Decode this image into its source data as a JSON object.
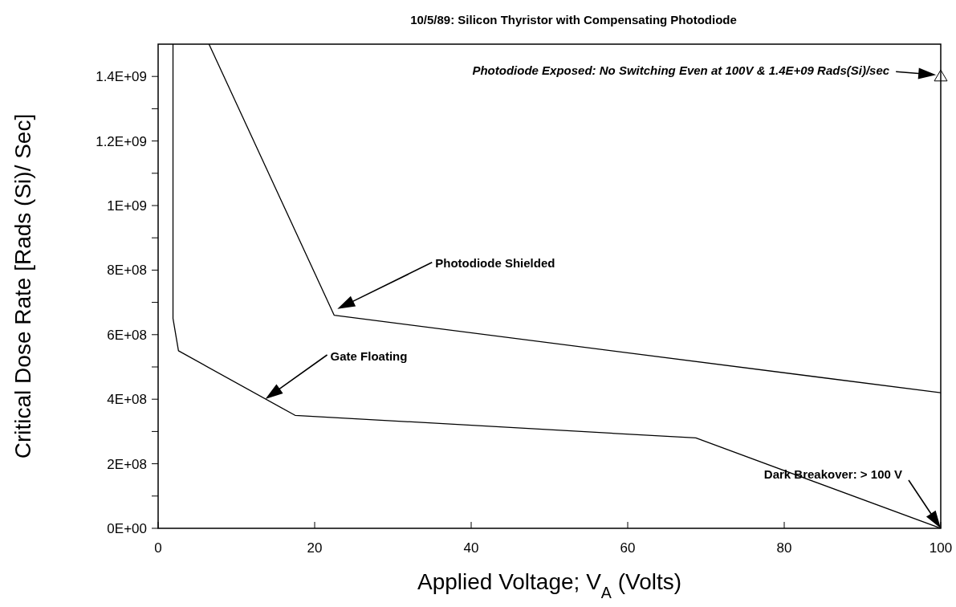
{
  "chart_data": {
    "type": "line",
    "title": "10/5/89: Silicon Thyristor with Compensating Photodiode",
    "xlabel": "Applied Voltage; V$_{A}$ (Volts)",
    "ylabel": "Critical Dose Rate [Rads (Si)/ Sec]",
    "xlim": [
      0,
      100
    ],
    "xticks": [
      0,
      20,
      40,
      60,
      80,
      100
    ],
    "ylim": [
      0,
      1500000000
    ],
    "yticks": [
      {
        "value": 0,
        "label": "0E+00"
      },
      {
        "value": 100000000,
        "label": null
      },
      {
        "value": 200000000,
        "label": "2E+08"
      },
      {
        "value": 300000000,
        "label": null
      },
      {
        "value": 400000000,
        "label": "4E+08"
      },
      {
        "value": 500000000,
        "label": null
      },
      {
        "value": 600000000,
        "label": "6E+08"
      },
      {
        "value": 700000000,
        "label": null
      },
      {
        "value": 800000000,
        "label": "8E+08"
      },
      {
        "value": 900000000,
        "label": null
      },
      {
        "value": 1000000000,
        "label": "1E+09"
      },
      {
        "value": 1100000000,
        "label": null
      },
      {
        "value": 1200000000,
        "label": "1.2E+09"
      },
      {
        "value": 1300000000,
        "label": null
      },
      {
        "value": 1400000000,
        "label": "1.4E+09"
      }
    ],
    "series": [
      {
        "color": "#000000",
        "x": [
          6.5,
          22.5,
          100
        ],
        "values": [
          1500000000,
          660000000,
          420000000
        ]
      },
      {
        "color": "#000000",
        "x": [
          1.9,
          1.9,
          2.6,
          17.5,
          68.7,
          100
        ],
        "values": [
          1500000000,
          650000000,
          550000000,
          350000000,
          280000000,
          0
        ]
      },
      {
        "type": "scatter",
        "marker": "triangle",
        "color": "#000000",
        "x": [
          100
        ],
        "values": [
          1400000000
        ]
      }
    ],
    "annotations": [
      "Photodiode Exposed: No Switching Even at 100V & 1.4E+09 Rads(Si)/sec",
      "Photodiode Shielded",
      "Gate Floating",
      "Dark Breakover: > 100 V"
    ],
    "grid": false
  }
}
